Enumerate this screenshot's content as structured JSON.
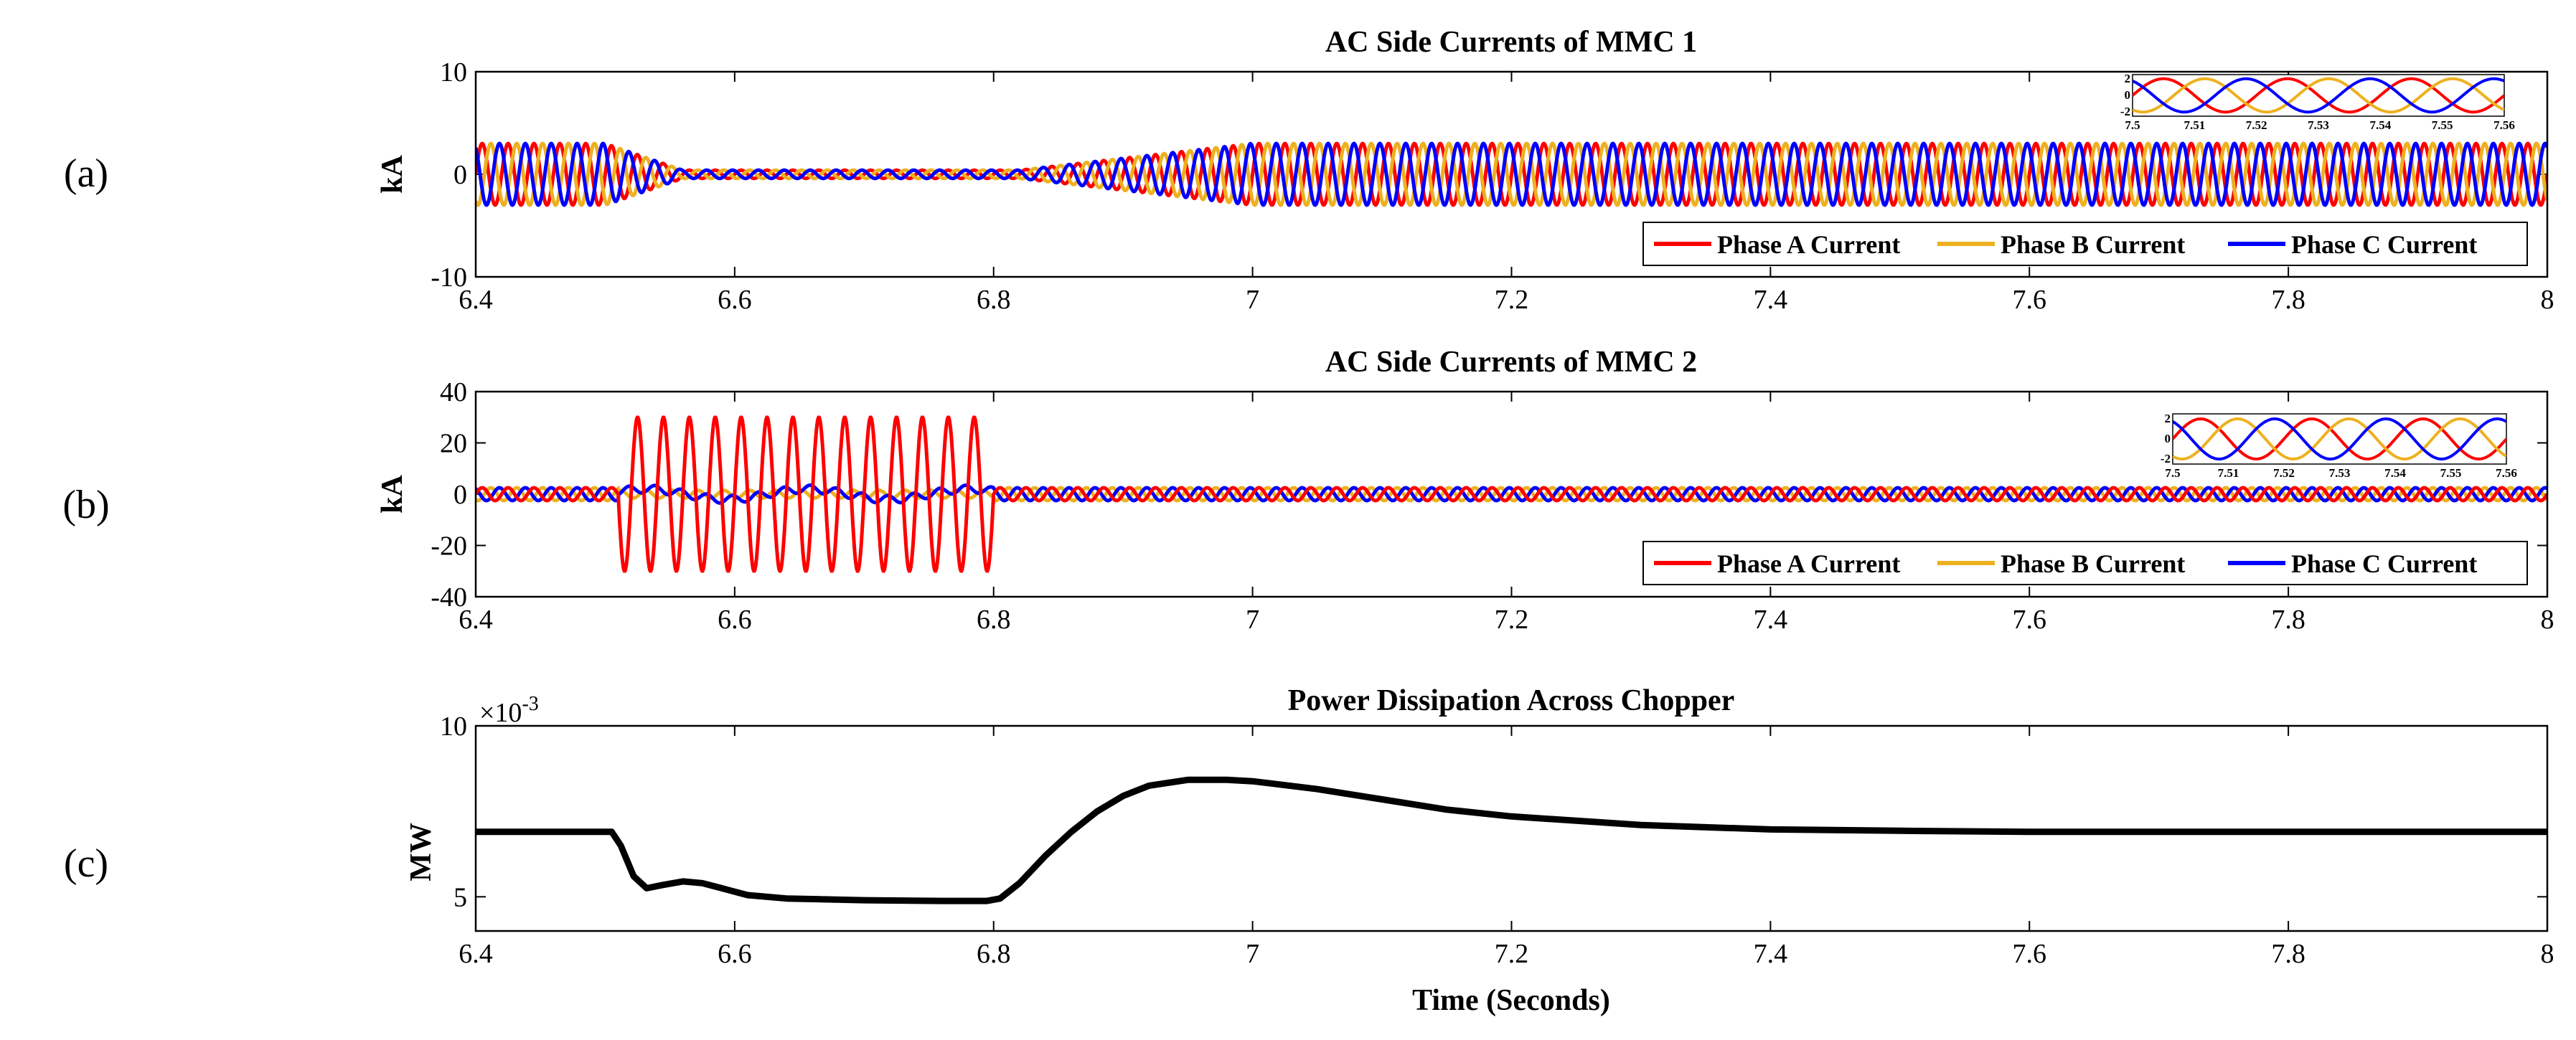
{
  "chart_data": [
    {
      "panel": "(a)",
      "type": "line",
      "title": "AC Side Currents of MMC 1",
      "xlabel": "",
      "ylabel": "kA",
      "xlim": [
        6.4,
        8
      ],
      "ylim": [
        -10,
        10
      ],
      "xticks": [
        "6.4",
        "6.6",
        "6.8",
        "7",
        "7.2",
        "7.4",
        "7.6",
        "7.8",
        "8"
      ],
      "yticks": [
        "10",
        "0",
        "-10"
      ],
      "frequency_hz": 50,
      "amplitude_segments": [
        {
          "t_start": 6.4,
          "t_end": 6.5,
          "amplitude": 3
        },
        {
          "t_start": 6.5,
          "t_end": 6.56,
          "amplitude": 3,
          "to": 0.4
        },
        {
          "t_start": 6.56,
          "t_end": 6.82,
          "amplitude": 0.4
        },
        {
          "t_start": 6.82,
          "t_end": 7.0,
          "amplitude": 0.4,
          "to": 3
        },
        {
          "t_start": 7.0,
          "t_end": 8.0,
          "amplitude": 3
        }
      ],
      "series": [
        {
          "name": "Phase A Current",
          "color": "#ff0000",
          "phase_deg": 0
        },
        {
          "name": "Phase B Current",
          "color": "#edb120",
          "phase_deg": -120
        },
        {
          "name": "Phase C Current",
          "color": "#0000ff",
          "phase_deg": 120
        }
      ],
      "legend": "bottom-right",
      "inset": {
        "location": "top-right",
        "xlim": [
          7.5,
          7.56
        ],
        "ylim": [
          -2.5,
          2.5
        ],
        "amplitude": 2,
        "xticks": [
          "7.5",
          "7.51",
          "7.52",
          "7.53",
          "7.54",
          "7.55",
          "7.56"
        ],
        "yticks": [
          "2",
          "0",
          "-2"
        ]
      }
    },
    {
      "panel": "(b)",
      "type": "line",
      "title": "AC Side Currents of MMC 2",
      "xlabel": "",
      "ylabel": "kA",
      "xlim": [
        6.4,
        8
      ],
      "ylim": [
        -40,
        40
      ],
      "xticks": [
        "6.4",
        "6.6",
        "6.8",
        "7",
        "7.2",
        "7.4",
        "7.6",
        "7.8",
        "8"
      ],
      "yticks": [
        "40",
        "20",
        "0",
        "-20",
        "-40"
      ],
      "frequency_hz": 50,
      "fault_window": [
        6.51,
        6.8
      ],
      "series": [
        {
          "name": "Phase A Current",
          "color": "#ff0000",
          "phase_deg": 0,
          "normal_amplitude": 2.5,
          "fault_amplitude": 30
        },
        {
          "name": "Phase B Current",
          "color": "#edb120",
          "phase_deg": -120,
          "normal_amplitude": 2.5,
          "fault_amplitude": 1.5
        },
        {
          "name": "Phase C Current",
          "color": "#0000ff",
          "phase_deg": 120,
          "normal_amplitude": 2.5,
          "fault_amplitude": 1.5
        }
      ],
      "legend": "bottom-right",
      "inset": {
        "location": "top-right",
        "xlim": [
          7.5,
          7.56
        ],
        "ylim": [
          -2.5,
          2.5
        ],
        "amplitude": 2,
        "xticks": [
          "7.5",
          "7.51",
          "7.52",
          "7.53",
          "7.54",
          "7.55",
          "7.56"
        ],
        "yticks": [
          "2",
          "0",
          "-2"
        ]
      }
    },
    {
      "panel": "(c)",
      "type": "line",
      "title": "Power Dissipation Across Chopper",
      "xlabel": "Time (Seconds)",
      "ylabel": "MW",
      "xlim": [
        6.4,
        8
      ],
      "ylim": [
        4,
        10
      ],
      "y_scale_label": "×10",
      "y_scale_exponent": "-3",
      "xticks": [
        "6.4",
        "6.6",
        "6.8",
        "7",
        "7.2",
        "7.4",
        "7.6",
        "7.8",
        "8"
      ],
      "yticks": [
        "10",
        "5"
      ],
      "series": [
        {
          "name": "Power",
          "color": "#000000",
          "x": [
            6.4,
            6.505,
            6.512,
            6.522,
            6.532,
            6.545,
            6.56,
            6.575,
            6.59,
            6.61,
            6.64,
            6.7,
            6.76,
            6.795,
            6.805,
            6.82,
            6.84,
            6.86,
            6.88,
            6.9,
            6.92,
            6.95,
            6.98,
            7.0,
            7.05,
            7.1,
            7.15,
            7.2,
            7.3,
            7.4,
            7.5,
            7.6,
            7.7,
            8.0
          ],
          "y": [
            6.9,
            6.9,
            6.5,
            5.6,
            5.25,
            5.35,
            5.45,
            5.4,
            5.25,
            5.05,
            4.95,
            4.9,
            4.88,
            4.88,
            4.95,
            5.4,
            6.2,
            6.9,
            7.5,
            7.95,
            8.25,
            8.42,
            8.42,
            8.38,
            8.15,
            7.85,
            7.55,
            7.35,
            7.1,
            6.97,
            6.93,
            6.9,
            6.9,
            6.9
          ]
        }
      ],
      "legend": "none"
    }
  ]
}
